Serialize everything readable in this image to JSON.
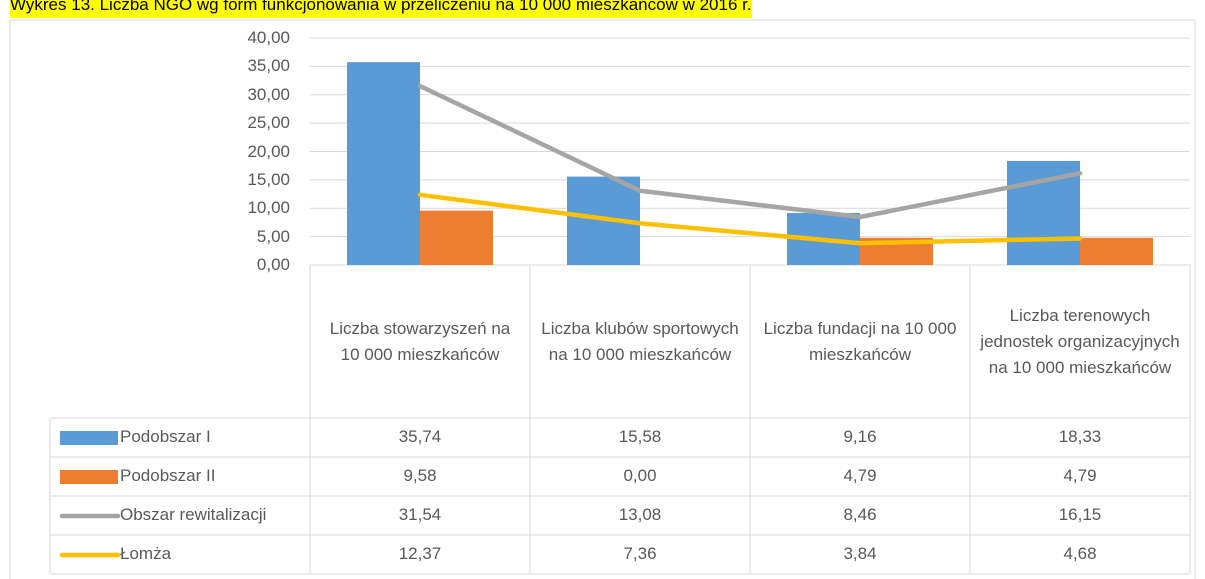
{
  "chart_data": {
    "type": "bar",
    "title": "Wykres 13. Liczba NGO wg form funkcjonowania w przeliczeniu na 10 000 mieszkańców w 2016 r.",
    "categories": [
      "Liczba stowarzyszeń na 10 000 mieszkańców",
      "Liczba klubów sportowych na 10 000 mieszkańców",
      "Liczba fundacji na 10 000 mieszkańców",
      "Liczba terenowych jednostek organizacyjnych na 10 000 mieszkańców"
    ],
    "series": [
      {
        "name": "Podobszar I",
        "type": "bar",
        "color": "#5b9bd5",
        "values": [
          35.74,
          15.58,
          9.16,
          18.33
        ],
        "value_labels": [
          "35,74",
          "15,58",
          "9,16",
          "18,33"
        ]
      },
      {
        "name": "Podobszar II",
        "type": "bar",
        "color": "#ed7d31",
        "values": [
          9.58,
          0,
          4.79,
          4.79
        ],
        "value_labels": [
          "9,58",
          "0,00",
          "4,79",
          "4,79"
        ]
      },
      {
        "name": "Obszar rewitalizacji",
        "type": "line",
        "color": "#a5a5a5",
        "values": [
          31.54,
          13.08,
          8.46,
          16.15
        ],
        "value_labels": [
          "31,54",
          "13,08",
          "8,46",
          "16,15"
        ]
      },
      {
        "name": "Łomża",
        "type": "line",
        "color": "#ffc000",
        "values": [
          12.37,
          7.36,
          3.84,
          4.68
        ],
        "value_labels": [
          "12,37",
          "7,36",
          "3,84",
          "4,68"
        ]
      }
    ],
    "ylim": [
      0,
      40
    ],
    "yticks": [
      {
        "value": 0,
        "label": "0,00"
      },
      {
        "value": 5,
        "label": "5,00"
      },
      {
        "value": 10,
        "label": "10,00"
      },
      {
        "value": 15,
        "label": "15,00"
      },
      {
        "value": 20,
        "label": "20,00"
      },
      {
        "value": 25,
        "label": "25,00"
      },
      {
        "value": 30,
        "label": "30,00"
      },
      {
        "value": 35,
        "label": "35,00"
      },
      {
        "value": 40,
        "label": "40,00"
      }
    ],
    "grid": true
  }
}
